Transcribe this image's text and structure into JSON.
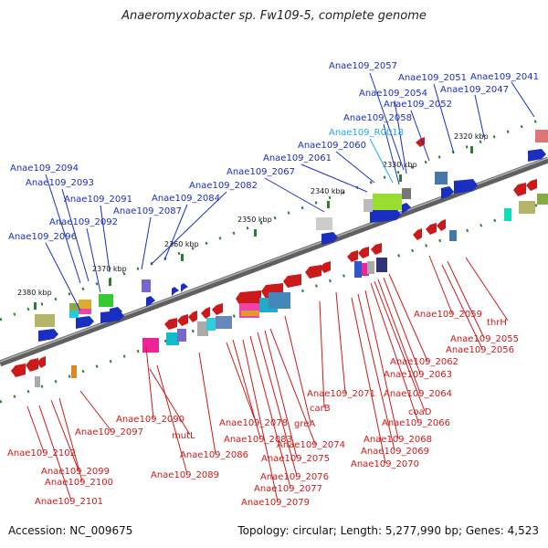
{
  "title": "Anaeromyxobacter sp. Fw109-5, complete genome",
  "accession": "Accession: NC_009675",
  "summary": "Topology: circular; Length: 5,277,990 bp; Genes: 4,523",
  "colors": {
    "forward": "#1a2fbf",
    "reverse": "#cc1a1a",
    "rna": "#22aadd",
    "backbone": "#808080",
    "tick": "#2e7d32"
  },
  "ticks": [
    {
      "label": "2320 kbp",
      "at": 2320
    },
    {
      "label": "2330 kbp",
      "at": 2330
    },
    {
      "label": "2340 kbp",
      "at": 2340
    },
    {
      "label": "2350 kbp",
      "at": 2350
    },
    {
      "label": "2360 kbp",
      "at": 2360
    },
    {
      "label": "2370 kbp",
      "at": 2370
    },
    {
      "label": "2380 kbp",
      "at": 2380
    }
  ],
  "forward_labels": [
    "Anae109_2057",
    "Anae109_2051",
    "Anae109_2041",
    "Anae109_2054",
    "Anae109_2047",
    "Anae109_2052",
    "Anae109_2058",
    "Anae109_2060",
    "Anae109_2061",
    "Anae109_2067",
    "Anae109_2082",
    "Anae109_2094",
    "Anae109_2093",
    "Anae109_2084",
    "Anae109_2091",
    "Anae109_2087",
    "Anae109_2092",
    "Anae109_2096"
  ],
  "rna_labels": [
    "Anae109_R0018"
  ],
  "reverse_labels": [
    "Anae109_2059",
    "thrH",
    "Anae109_2055",
    "Anae109_2056",
    "Anae109_2062",
    "Anae109_2063",
    "Anae109_2064",
    "coaD",
    "Anae109_2071",
    "carB",
    "Anae109_2066",
    "Anae109_2090",
    "Anae109_2078",
    "greA",
    "Anae109_2068",
    "Anae109_2097",
    "mutL",
    "Anae109_2083",
    "Anae109_2074",
    "Anae109_2069",
    "Anae109_2102",
    "Anae109_2086",
    "Anae109_2075",
    "Anae109_2070",
    "Anae109_2099",
    "Anae109_2089",
    "Anae109_2076",
    "Anae109_2100",
    "Anae109_2077",
    "Anae109_2101",
    "Anae109_2079"
  ]
}
